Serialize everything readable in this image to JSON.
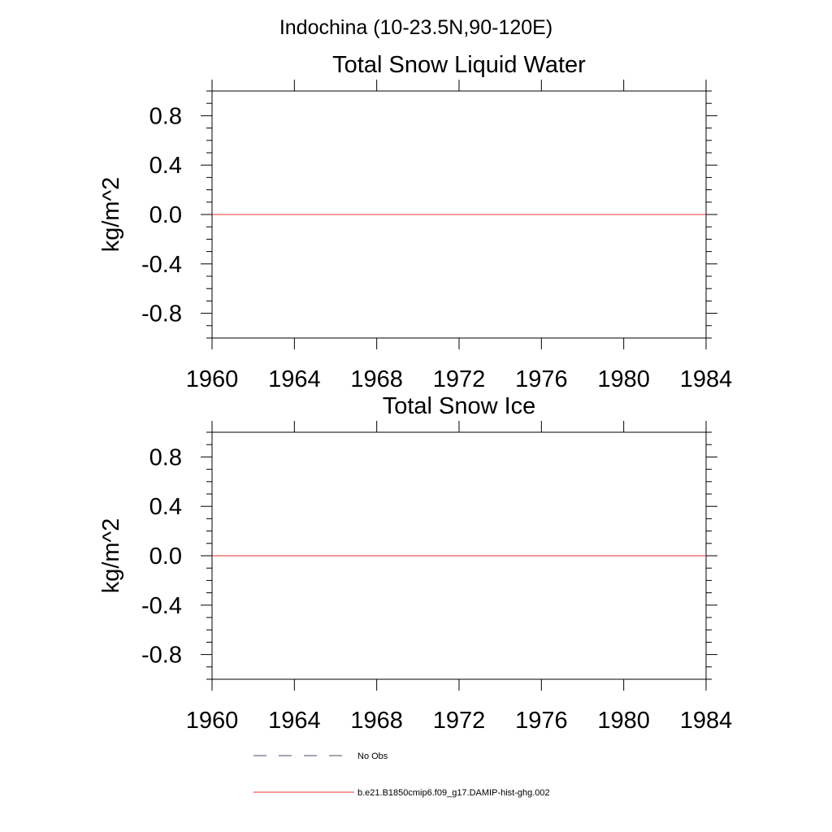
{
  "figure": {
    "suptitle": "Indochina (10-23.5N,90-120E)"
  },
  "chart_data": [
    {
      "type": "line",
      "title": "Total Snow Liquid Water",
      "xlabel": "",
      "ylabel": "kg/m^2",
      "xlim": [
        1960,
        1984
      ],
      "ylim": [
        -1.0,
        1.0
      ],
      "x_ticks": [
        1960,
        1964,
        1968,
        1972,
        1976,
        1980,
        1984
      ],
      "x_tick_labels": [
        "1960",
        "1964",
        "1968",
        "1972",
        "1976",
        "1980",
        "1984"
      ],
      "y_ticks": [
        0.8,
        0.4,
        0.0,
        -0.4,
        -0.8
      ],
      "y_tick_labels": [
        "0.8",
        "0.4",
        "0.0",
        "-0.4",
        "-0.8"
      ],
      "grid": false,
      "series": [
        {
          "name": "b.e21.B1850cmip6.f09_g17.DAMIP-hist-ghg.002",
          "color": "#e8312f",
          "x": [
            1960,
            1984
          ],
          "y": [
            0.0,
            0.0
          ]
        }
      ]
    },
    {
      "type": "line",
      "title": "Total Snow Ice",
      "xlabel": "",
      "ylabel": "kg/m^2",
      "xlim": [
        1960,
        1984
      ],
      "ylim": [
        -1.0,
        1.0
      ],
      "x_ticks": [
        1960,
        1964,
        1968,
        1972,
        1976,
        1980,
        1984
      ],
      "x_tick_labels": [
        "1960",
        "1964",
        "1968",
        "1972",
        "1976",
        "1980",
        "1984"
      ],
      "y_ticks": [
        0.8,
        0.4,
        0.0,
        -0.4,
        -0.8
      ],
      "y_tick_labels": [
        "0.8",
        "0.4",
        "0.0",
        "-0.4",
        "-0.8"
      ],
      "grid": false,
      "series": [
        {
          "name": "b.e21.B1850cmip6.f09_g17.DAMIP-hist-ghg.002",
          "color": "#e8312f",
          "x": [
            1960,
            1984
          ],
          "y": [
            0.0,
            0.0
          ]
        }
      ]
    }
  ],
  "legend": {
    "placement": "bottom",
    "items": [
      {
        "label": "No Obs",
        "style": "dashed",
        "color": "#4a4a6a"
      },
      {
        "label": "b.e21.B1850cmip6.f09_g17.DAMIP-hist-ghg.002",
        "style": "solid",
        "color": "#e8312f"
      }
    ]
  }
}
